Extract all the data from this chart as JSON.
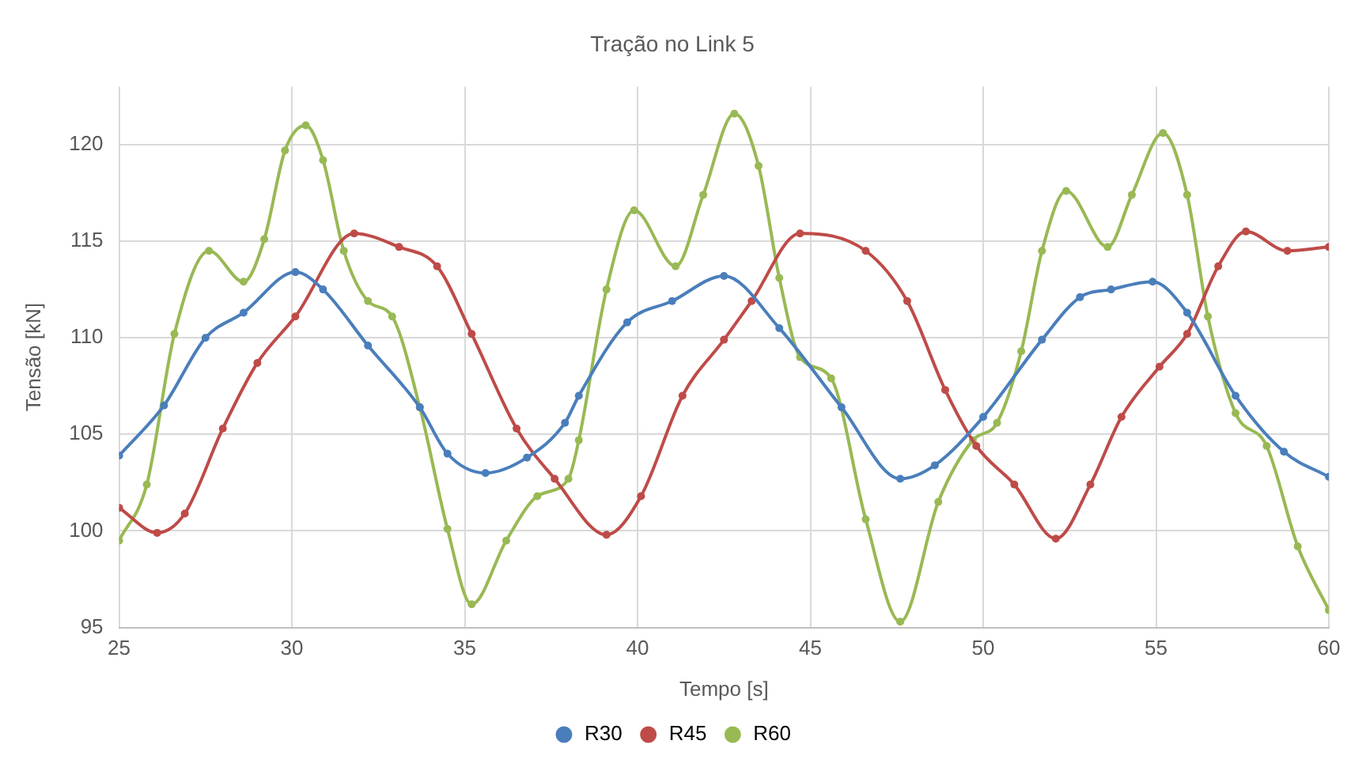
{
  "chart_data": {
    "type": "line",
    "title": "Tração no Link 5",
    "xlabel": "Tempo [s]",
    "ylabel": "Tensão [kN]",
    "xlim": [
      25,
      60
    ],
    "xticks": [
      25,
      30,
      35,
      40,
      45,
      50,
      55,
      60
    ],
    "ylim": [
      95,
      123
    ],
    "yticks": [
      95,
      100,
      105,
      110,
      115,
      120
    ],
    "grid": true,
    "legend": "bottom",
    "marker": "circle",
    "series": [
      {
        "name": "R30",
        "color": "#4a7ebb",
        "x": [
          25,
          26.3,
          27.5,
          28.6,
          30.1,
          30.9,
          32.2,
          33.7,
          34.5,
          35.6,
          36.8,
          37.9,
          38.3,
          39.7,
          41,
          42.5,
          44.1,
          45.9,
          47.6,
          48.6,
          50,
          51.7,
          52.8,
          53.7,
          54.9,
          55.9,
          57.3,
          58.7,
          60
        ],
        "values": [
          103.9,
          106.5,
          110,
          111.3,
          113.4,
          112.5,
          109.6,
          106.4,
          104,
          103,
          103.8,
          105.6,
          107,
          110.8,
          111.9,
          113.2,
          110.5,
          106.4,
          102.7,
          103.4,
          105.9,
          109.9,
          112.1,
          112.5,
          112.9,
          111.3,
          107,
          104.1,
          102.8
        ]
      },
      {
        "name": "R45",
        "color": "#be4b48",
        "x": [
          25,
          26.1,
          26.9,
          28,
          29,
          30.1,
          31.8,
          33.1,
          34.2,
          35.2,
          36.5,
          37.6,
          39.1,
          40.1,
          41.3,
          42.5,
          43.3,
          44.7,
          46.6,
          47.8,
          48.9,
          49.8,
          50.9,
          52.1,
          53.1,
          54,
          55.1,
          55.9,
          56.8,
          57.6,
          58.8,
          60
        ],
        "values": [
          101.2,
          99.9,
          100.9,
          105.3,
          108.7,
          111.1,
          115.4,
          114.7,
          113.7,
          110.2,
          105.3,
          102.7,
          99.8,
          101.8,
          107,
          109.9,
          111.9,
          115.4,
          114.5,
          111.9,
          107.3,
          104.4,
          102.4,
          99.6,
          102.4,
          105.9,
          108.5,
          110.2,
          113.7,
          115.5,
          114.5,
          114.7
        ]
      },
      {
        "name": "R60",
        "color": "#98b954",
        "x": [
          25,
          25.8,
          26.6,
          27.6,
          28.6,
          29.2,
          29.8,
          30.4,
          30.9,
          31.5,
          32.2,
          32.9,
          33.7,
          34.5,
          35.2,
          36.2,
          37.1,
          38,
          38.3,
          39.1,
          39.9,
          41.1,
          41.9,
          42.8,
          43.5,
          44.1,
          44.7,
          45.6,
          46.6,
          47.6,
          48.7,
          49.7,
          50.4,
          51.1,
          51.7,
          52.4,
          53.6,
          54.3,
          55.2,
          55.9,
          56.5,
          57.3,
          58.2,
          59.1,
          60
        ],
        "values": [
          99.5,
          102.4,
          110.2,
          114.5,
          112.9,
          115.1,
          119.7,
          121,
          119.2,
          114.5,
          111.9,
          111.1,
          106.4,
          100.1,
          96.2,
          99.5,
          101.8,
          102.7,
          104.7,
          112.5,
          116.6,
          113.7,
          117.4,
          121.6,
          118.9,
          113.1,
          109,
          107.9,
          100.6,
          95.3,
          101.5,
          104.7,
          105.6,
          109.3,
          114.5,
          117.6,
          114.7,
          117.4,
          120.6,
          117.4,
          111.1,
          106.1,
          104.4,
          99.2,
          95.9
        ]
      }
    ]
  }
}
